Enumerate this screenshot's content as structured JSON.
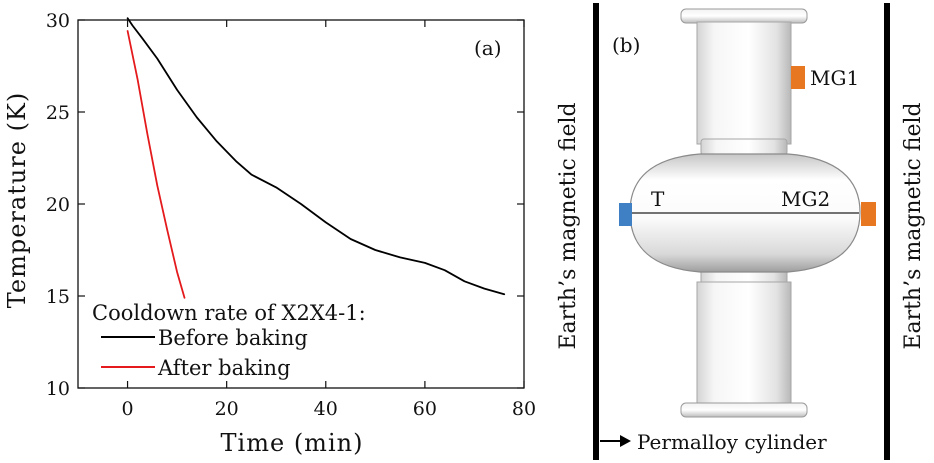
{
  "chart_data": {
    "type": "line",
    "panel_label": "(a)",
    "xlabel": "Time (min)",
    "ylabel": "Temperature (K)",
    "xlim": [
      -10,
      80
    ],
    "ylim": [
      10,
      30
    ],
    "xticks": [
      0,
      20,
      40,
      60,
      80
    ],
    "yticks": [
      10,
      15,
      20,
      25,
      30
    ],
    "grid": false,
    "legend_title": "Cooldown rate of X2X4-1:",
    "legend_position": "bottom-left",
    "series": [
      {
        "name": "Before baking",
        "color": "#000000",
        "x": [
          0,
          1,
          3,
          6,
          10,
          14,
          18,
          22,
          25,
          30,
          35,
          40,
          45,
          50,
          55,
          60,
          64,
          68,
          72,
          76
        ],
        "y": [
          30.1,
          29.7,
          29.0,
          27.9,
          26.2,
          24.7,
          23.4,
          22.3,
          21.6,
          20.9,
          20.0,
          19.0,
          18.1,
          17.5,
          17.1,
          16.8,
          16.4,
          15.8,
          15.4,
          15.1
        ]
      },
      {
        "name": "After baking",
        "color": "#e41a1c",
        "x": [
          0,
          2,
          4,
          6,
          8,
          10,
          11.5
        ],
        "y": [
          29.4,
          26.8,
          23.8,
          21.0,
          18.6,
          16.3,
          14.9
        ]
      }
    ]
  },
  "schematic": {
    "panel_label": "(b)",
    "left_field_label": "Earth’s magnetic field",
    "right_field_label": "Earth’s magnetic field",
    "sensor_mg1_label": "MG1",
    "sensor_mg2_label": "MG2",
    "sensor_t_label": "T",
    "cylinder_label": "Permalloy cylinder",
    "sensor_mg_color": "#e87722",
    "sensor_t_color": "#3f7fc4"
  }
}
